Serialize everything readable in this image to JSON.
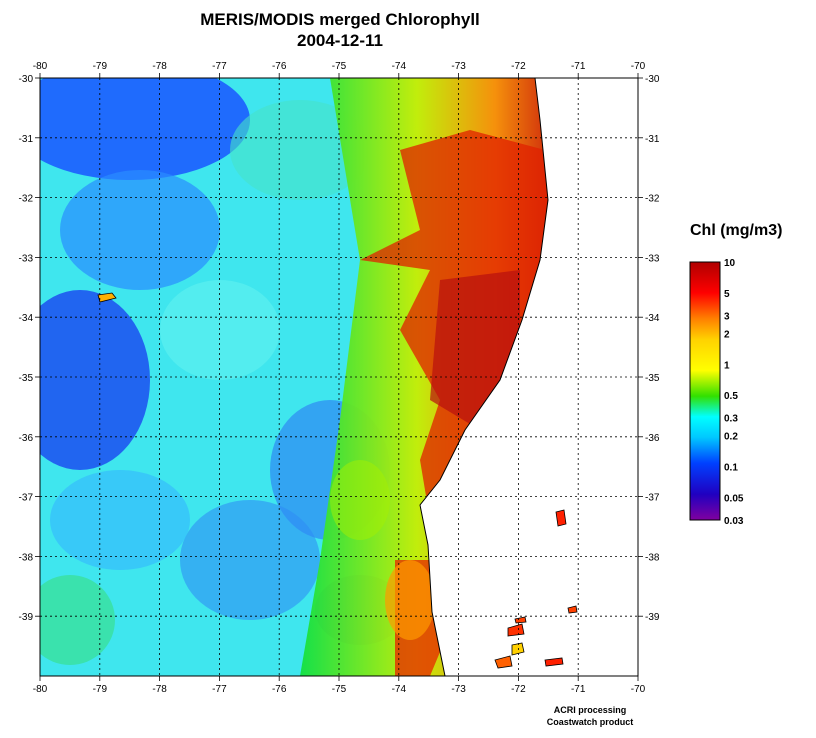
{
  "title": {
    "line1": "MERIS/MODIS merged Chlorophyll",
    "line2": "2004-12-11"
  },
  "map": {
    "lon_ticks": [
      "-80",
      "-79",
      "-78",
      "-77",
      "-76",
      "-75",
      "-74",
      "-73",
      "-72",
      "-71",
      "-70"
    ],
    "lat_ticks": [
      "-30",
      "-31",
      "-32",
      "-33",
      "-34",
      "-35",
      "-36",
      "-37",
      "-38",
      "-39"
    ],
    "lon_range": [
      -80,
      -70
    ],
    "lat_range": [
      -30,
      -40
    ],
    "grid": "dotted",
    "land_color": "#ffffff",
    "coast_color": "#000000"
  },
  "legend": {
    "title": "Chl (mg/m3)",
    "scale": "log",
    "labels": [
      "10",
      "5",
      "3",
      "2",
      "1",
      "0.5",
      "0.3",
      "0.2",
      "0.1",
      "0.05",
      "0.03"
    ],
    "colors": [
      "#b00000",
      "#ff0000",
      "#ff8000",
      "#ffd200",
      "#ffff00",
      "#32e000",
      "#00ffff",
      "#00c8ff",
      "#0040ff",
      "#2000c0",
      "#8000a0"
    ]
  },
  "credits": {
    "line1": "ACRI processing",
    "line2": "Coastwatch product"
  }
}
